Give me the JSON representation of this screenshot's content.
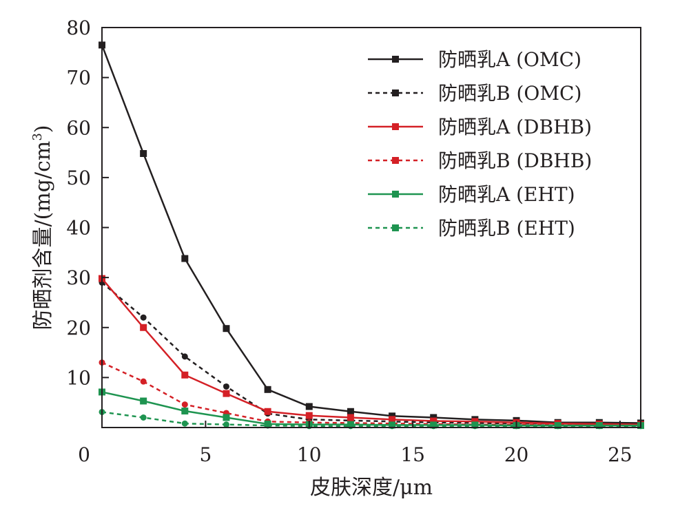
{
  "chart_data": {
    "type": "line",
    "title": "",
    "xlabel": "皮肤深度/μm",
    "ylabel": "防晒剂含量/(mg/cm3)",
    "ylabel_main": "防晒剂含量/(mg/cm",
    "ylabel_sup": "3",
    "ylabel_end": ")",
    "xlim": [
      0,
      26
    ],
    "ylim": [
      0,
      80
    ],
    "x_ticks": [
      "0",
      "5",
      "10",
      "15",
      "20",
      "25"
    ],
    "y_ticks": [
      "10",
      "20",
      "30",
      "40",
      "50",
      "60",
      "70",
      "80"
    ],
    "grid": false,
    "legend_position": "top-right",
    "series": [
      {
        "name": "防晒乳A (OMC)",
        "color": "#231f20",
        "dashed": false,
        "marker": "square",
        "x": [
          0,
          2,
          4,
          6,
          8,
          10,
          12,
          14,
          16,
          18,
          20,
          22,
          24,
          26
        ],
        "y": [
          76.5,
          54.8,
          33.8,
          19.8,
          7.6,
          4.2,
          3.2,
          2.3,
          2.0,
          1.6,
          1.4,
          1.0,
          1.0,
          0.9
        ]
      },
      {
        "name": "防晒乳B (OMC)",
        "color": "#231f20",
        "dashed": true,
        "marker": "circle",
        "x": [
          0,
          2,
          4,
          6,
          8,
          10,
          12,
          14,
          16,
          18,
          20,
          22,
          24,
          26
        ],
        "y": [
          29.0,
          22.0,
          14.2,
          8.2,
          2.8,
          1.6,
          1.4,
          1.2,
          1.0,
          0.9,
          0.8,
          0.8,
          0.7,
          0.7
        ]
      },
      {
        "name": "防晒乳A (DBHB)",
        "color": "#d42026",
        "dashed": false,
        "marker": "square",
        "x": [
          0,
          2,
          4,
          6,
          8,
          10,
          12,
          14,
          16,
          18,
          20,
          22,
          24,
          26
        ],
        "y": [
          29.8,
          20.0,
          10.5,
          6.8,
          3.2,
          2.4,
          2.0,
          1.6,
          1.3,
          1.2,
          1.0,
          0.8,
          0.7,
          0.6
        ]
      },
      {
        "name": "防晒乳B (DBHB)",
        "color": "#d42026",
        "dashed": true,
        "marker": "circle",
        "x": [
          0,
          2,
          4,
          6,
          8,
          10,
          12,
          14,
          16,
          18,
          20,
          22,
          24,
          26
        ],
        "y": [
          13.0,
          9.2,
          4.6,
          2.9,
          1.2,
          1.0,
          0.9,
          0.8,
          0.7,
          0.6,
          0.6,
          0.5,
          0.5,
          0.5
        ]
      },
      {
        "name": "防晒乳A (EHT)",
        "color": "#1e9450",
        "dashed": false,
        "marker": "square",
        "x": [
          0,
          2,
          4,
          6,
          8,
          10,
          12,
          14,
          16,
          18,
          20,
          22,
          24,
          26
        ],
        "y": [
          7.1,
          5.3,
          3.3,
          2.0,
          0.7,
          0.6,
          0.6,
          0.5,
          0.5,
          0.5,
          0.4,
          0.4,
          0.4,
          0.4
        ]
      },
      {
        "name": "防晒乳B (EHT)",
        "color": "#1e9450",
        "dashed": true,
        "marker": "circle",
        "x": [
          0,
          2,
          4,
          6,
          8,
          10,
          12,
          14,
          16,
          18,
          20,
          22,
          24,
          26
        ],
        "y": [
          3.1,
          2.0,
          0.8,
          0.6,
          0.4,
          0.3,
          0.3,
          0.3,
          0.3,
          0.3,
          0.3,
          0.3,
          0.3,
          0.3
        ]
      }
    ]
  }
}
